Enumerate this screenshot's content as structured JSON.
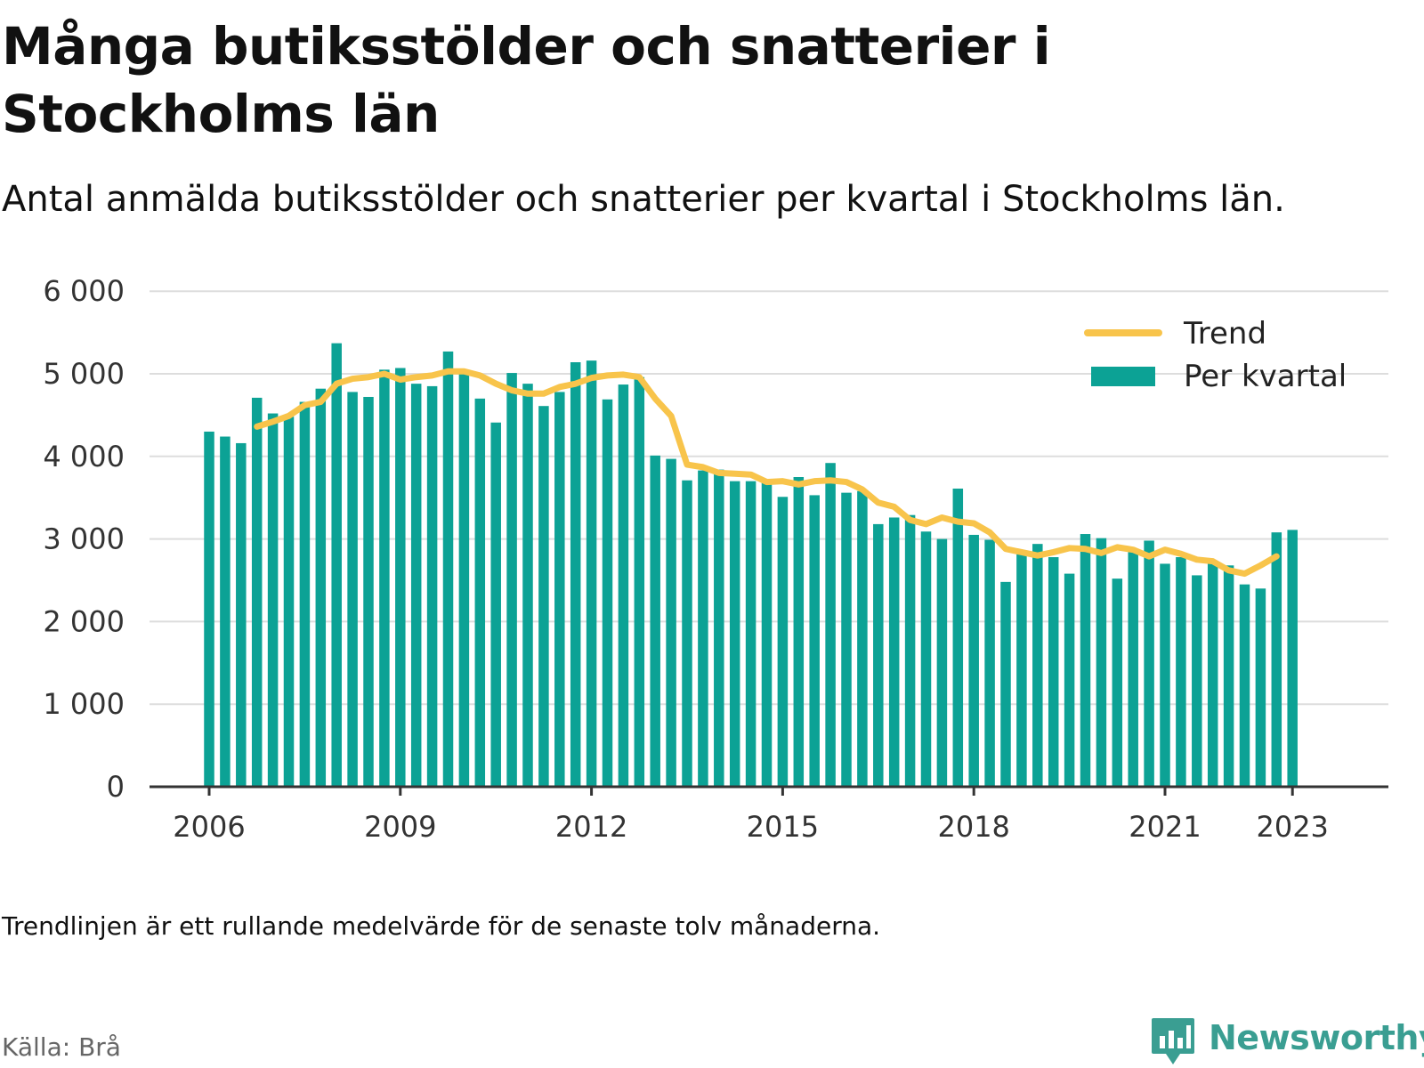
{
  "title": "Många butiksstölder och snatterier i Stockholms län",
  "subtitle": "Antal anmälda butiksstölder och snatterier per kvartal i Stockholms län.",
  "note": "Trendlinjen är ett rullande medelvärde för de senaste tolv månaderna.",
  "source": "Källa: Brå",
  "brand": {
    "name": "Newsworthy",
    "icon": "newsworthy-logo-icon"
  },
  "colors": {
    "bars": "#0ca295",
    "trend": "#f8c44b",
    "grid": "#dddddd",
    "axis": "#333333",
    "brand": "#3a9e92"
  },
  "chart_data": {
    "type": "bar",
    "x_start": "2006 Q1",
    "x_ticks": [
      "2006",
      "2009",
      "2012",
      "2015",
      "2018",
      "2021",
      "2023"
    ],
    "y_ticks": [
      "0",
      "1 000",
      "2 000",
      "3 000",
      "4 000",
      "5 000",
      "6 000"
    ],
    "ylim": [
      0,
      6000
    ],
    "grid": true,
    "legend_position": "top-right",
    "legend": [
      "Trend",
      "Per kvartal"
    ],
    "series": [
      {
        "name": "Per kvartal",
        "type": "bar",
        "values": [
          4300,
          4240,
          4160,
          4710,
          4520,
          4480,
          4660,
          4820,
          5370,
          4780,
          4720,
          5050,
          5070,
          4880,
          4850,
          5270,
          5000,
          4700,
          4410,
          5010,
          4880,
          4610,
          4780,
          5140,
          5160,
          4690,
          4870,
          4960,
          4010,
          3970,
          3710,
          3830,
          3840,
          3700,
          3700,
          3720,
          3510,
          3750,
          3530,
          3920,
          3560,
          3580,
          3180,
          3260,
          3290,
          3090,
          3000,
          3610,
          3050,
          2990,
          2480,
          2840,
          2940,
          2780,
          2580,
          3060,
          3010,
          2520,
          2840,
          2980,
          2700,
          2780,
          2560,
          2700,
          2680,
          2450,
          2400,
          3080,
          3110
        ]
      },
      {
        "name": "Trend",
        "type": "line",
        "start_index": 3,
        "values": [
          4360,
          4420,
          4490,
          4620,
          4660,
          4880,
          4940,
          4960,
          5000,
          4930,
          4960,
          4980,
          5030,
          5030,
          4980,
          4880,
          4800,
          4760,
          4760,
          4840,
          4880,
          4950,
          4980,
          4990,
          4960,
          4700,
          4490,
          3900,
          3870,
          3800,
          3790,
          3780,
          3690,
          3700,
          3660,
          3700,
          3710,
          3690,
          3600,
          3440,
          3390,
          3230,
          3180,
          3260,
          3210,
          3190,
          3080,
          2880,
          2840,
          2800,
          2840,
          2890,
          2880,
          2830,
          2900,
          2870,
          2790,
          2870,
          2820,
          2750,
          2730,
          2620,
          2580,
          2680,
          2790
        ]
      }
    ]
  }
}
